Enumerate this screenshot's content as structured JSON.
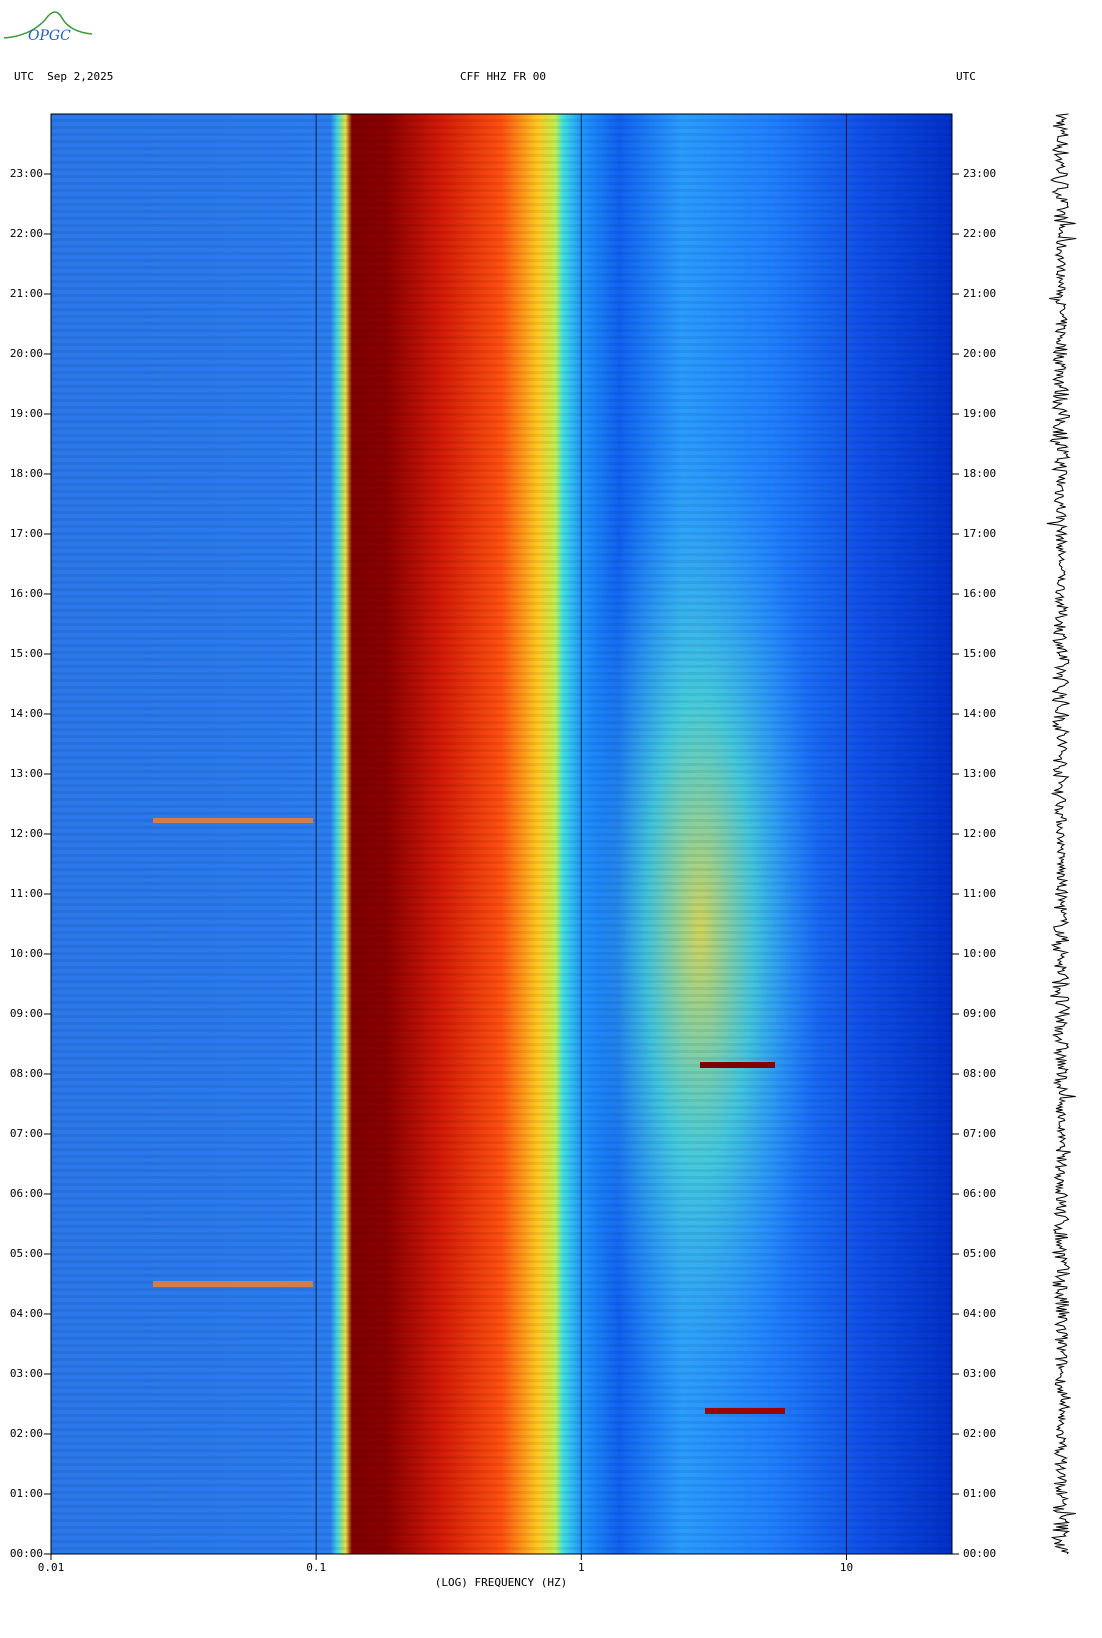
{
  "logo": "OPGC",
  "chart_data": {
    "type": "spectrogram",
    "title": "CFF HHZ FR 00",
    "left_label": "UTC  Sep 2,2025",
    "right_label": "UTC",
    "xlabel": "(LOG) FREQUENCY (HZ)",
    "xscale": "log",
    "xlim": [
      0.01,
      25
    ],
    "xticks": [
      0.01,
      0.1,
      1,
      10
    ],
    "ylim": [
      0,
      24
    ],
    "yticks": [
      {
        "value": 0,
        "label": "00:00"
      },
      {
        "value": 1,
        "label": "01:00"
      },
      {
        "value": 2,
        "label": "02:00"
      },
      {
        "value": 3,
        "label": "03:00"
      },
      {
        "value": 4,
        "label": "04:00"
      },
      {
        "value": 5,
        "label": "05:00"
      },
      {
        "value": 6,
        "label": "06:00"
      },
      {
        "value": 7,
        "label": "07:00"
      },
      {
        "value": 8,
        "label": "08:00"
      },
      {
        "value": 9,
        "label": "09:00"
      },
      {
        "value": 10,
        "label": "10:00"
      },
      {
        "value": 11,
        "label": "11:00"
      },
      {
        "value": 12,
        "label": "12:00"
      },
      {
        "value": 13,
        "label": "13:00"
      },
      {
        "value": 14,
        "label": "14:00"
      },
      {
        "value": 15,
        "label": "15:00"
      },
      {
        "value": 16,
        "label": "16:00"
      },
      {
        "value": 17,
        "label": "17:00"
      },
      {
        "value": 18,
        "label": "18:00"
      },
      {
        "value": 19,
        "label": "19:00"
      },
      {
        "value": 20,
        "label": "20:00"
      },
      {
        "value": 21,
        "label": "21:00"
      },
      {
        "value": 22,
        "label": "22:00"
      },
      {
        "value": 23,
        "label": "23:00"
      }
    ],
    "grid": true
  }
}
